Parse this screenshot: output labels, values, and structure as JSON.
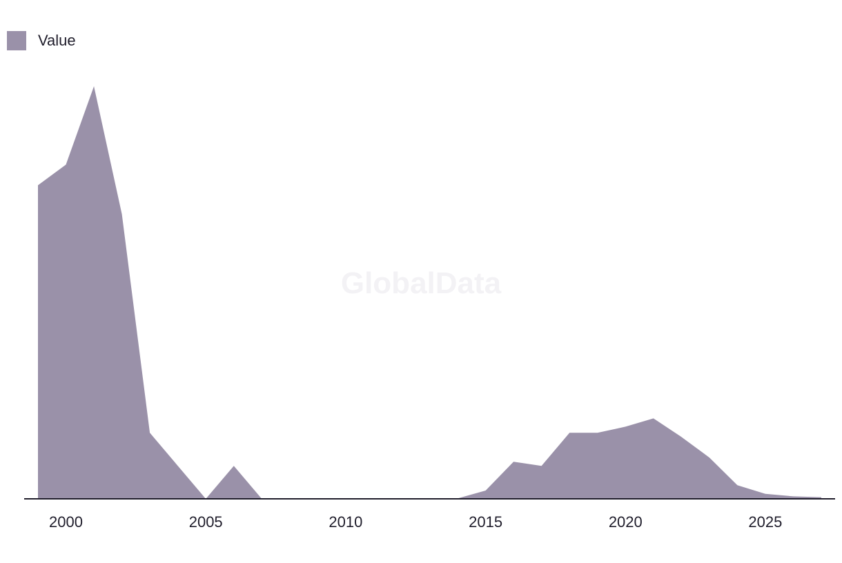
{
  "watermark": "GlobalData",
  "chart_data": {
    "type": "area",
    "series": [
      {
        "name": "Value",
        "color": "#9a91a9",
        "x": [
          1999,
          2000,
          2001,
          2002,
          2003,
          2004,
          2005,
          2006,
          2007,
          2008,
          2009,
          2010,
          2011,
          2012,
          2013,
          2014,
          2015,
          2016,
          2017,
          2018,
          2019,
          2020,
          2021,
          2022,
          2023,
          2024,
          2025,
          2026,
          2027
        ],
        "values": [
          76,
          81,
          100,
          69,
          16,
          8,
          0,
          8,
          0,
          0,
          0,
          0,
          0,
          0.1,
          0.1,
          0.1,
          2,
          9,
          8,
          16,
          16,
          17.5,
          19.5,
          15,
          10,
          3.3,
          1.2,
          0.6,
          0.4
        ]
      }
    ],
    "xticks": [
      "2000",
      "2005",
      "2010",
      "2015",
      "2020",
      "2025"
    ],
    "xlim": [
      1998.5,
      2027.5
    ],
    "ylim": [
      0,
      105
    ],
    "grid": false,
    "legend": "top-left",
    "xlabel": "",
    "ylabel": ""
  }
}
